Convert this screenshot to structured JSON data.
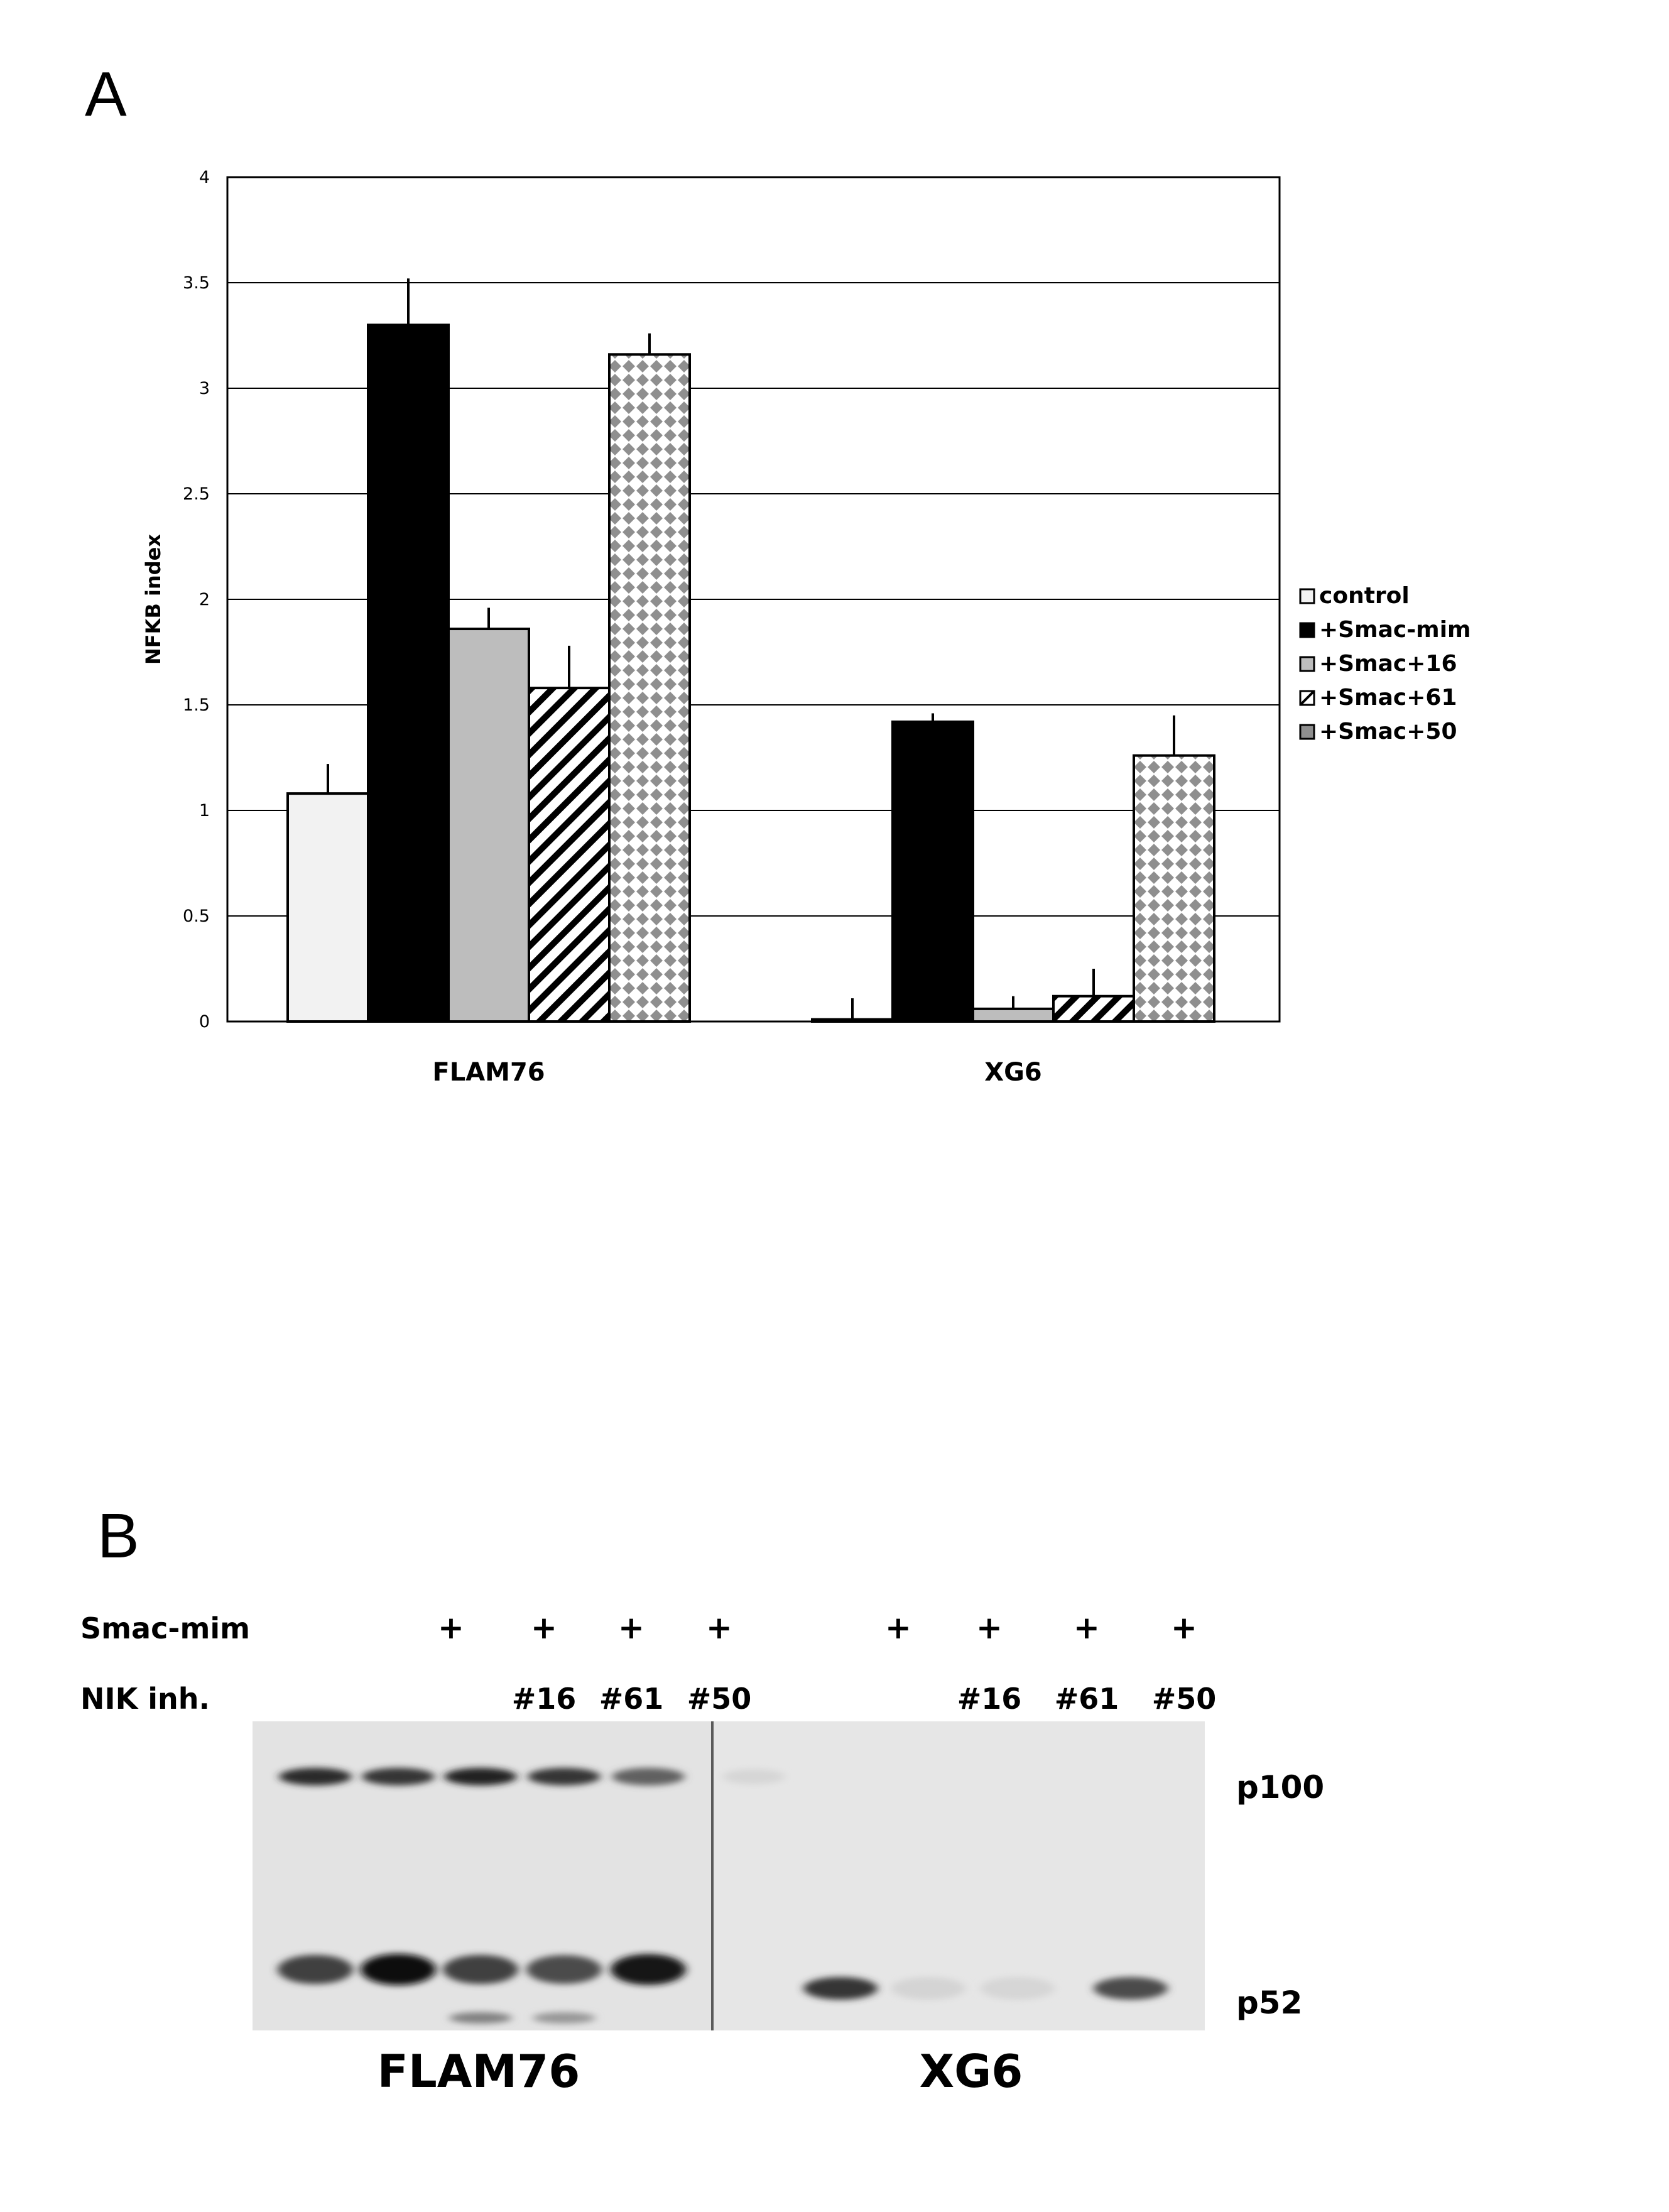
{
  "panel_a": {
    "letter": "A"
  },
  "panel_b": {
    "letter": "B",
    "row_labels": [
      "Smac-mim",
      "NIK inh."
    ],
    "smac_row": [
      "",
      "+",
      "+",
      "+",
      "+",
      "+",
      "+",
      "+",
      "+"
    ],
    "nik_row": [
      "",
      "",
      "#16",
      "#61",
      "#50",
      "",
      "#16",
      "#61",
      "#50"
    ],
    "band_labels": [
      "p100",
      "p52"
    ],
    "cell_lines": [
      "FLAM76",
      "XG6"
    ],
    "band_intensity": {
      "FLAM76": {
        "p100": [
          0.85,
          0.8,
          0.9,
          0.8,
          0.6
        ],
        "p52": [
          0.75,
          1.0,
          0.75,
          0.7,
          0.95
        ],
        "lower": [
          0,
          0,
          0.45,
          0.35,
          0
        ]
      },
      "XG6": {
        "p100": [
          0.05,
          0,
          0,
          0,
          0
        ],
        "p52": [
          0,
          0.8,
          0.06,
          0.05,
          0.7
        ]
      }
    }
  },
  "chart_data": {
    "type": "bar",
    "categories": [
      "FLAM76",
      "XG6"
    ],
    "ylabel": "NFKB index",
    "ylim": [
      0,
      4
    ],
    "yticks": [
      "0",
      "0.5",
      "1",
      "1.5",
      "2",
      "2.5",
      "3",
      "3.5",
      "4"
    ],
    "grid": true,
    "legend_position": "right",
    "series": [
      {
        "name": "control",
        "values": [
          1.08,
          0.01
        ],
        "errors": [
          0.14,
          0.1
        ],
        "fill": "#f2f2f2",
        "pattern": "solid"
      },
      {
        "name": "+Smac-mim",
        "values": [
          3.3,
          1.42
        ],
        "errors": [
          0.22,
          0.04
        ],
        "fill": "#000000",
        "pattern": "solid"
      },
      {
        "name": "+Smac+16",
        "values": [
          1.86,
          0.06
        ],
        "errors": [
          0.1,
          0.06
        ],
        "fill": "#bdbdbd",
        "pattern": "solid"
      },
      {
        "name": "+Smac+61",
        "values": [
          1.58,
          0.12
        ],
        "errors": [
          0.2,
          0.13
        ],
        "fill": "#ffffff",
        "pattern": "diagonal"
      },
      {
        "name": "+Smac+50",
        "values": [
          3.16,
          1.26
        ],
        "errors": [
          0.1,
          0.19
        ],
        "fill": "#ffffff",
        "pattern": "diamond"
      }
    ]
  }
}
